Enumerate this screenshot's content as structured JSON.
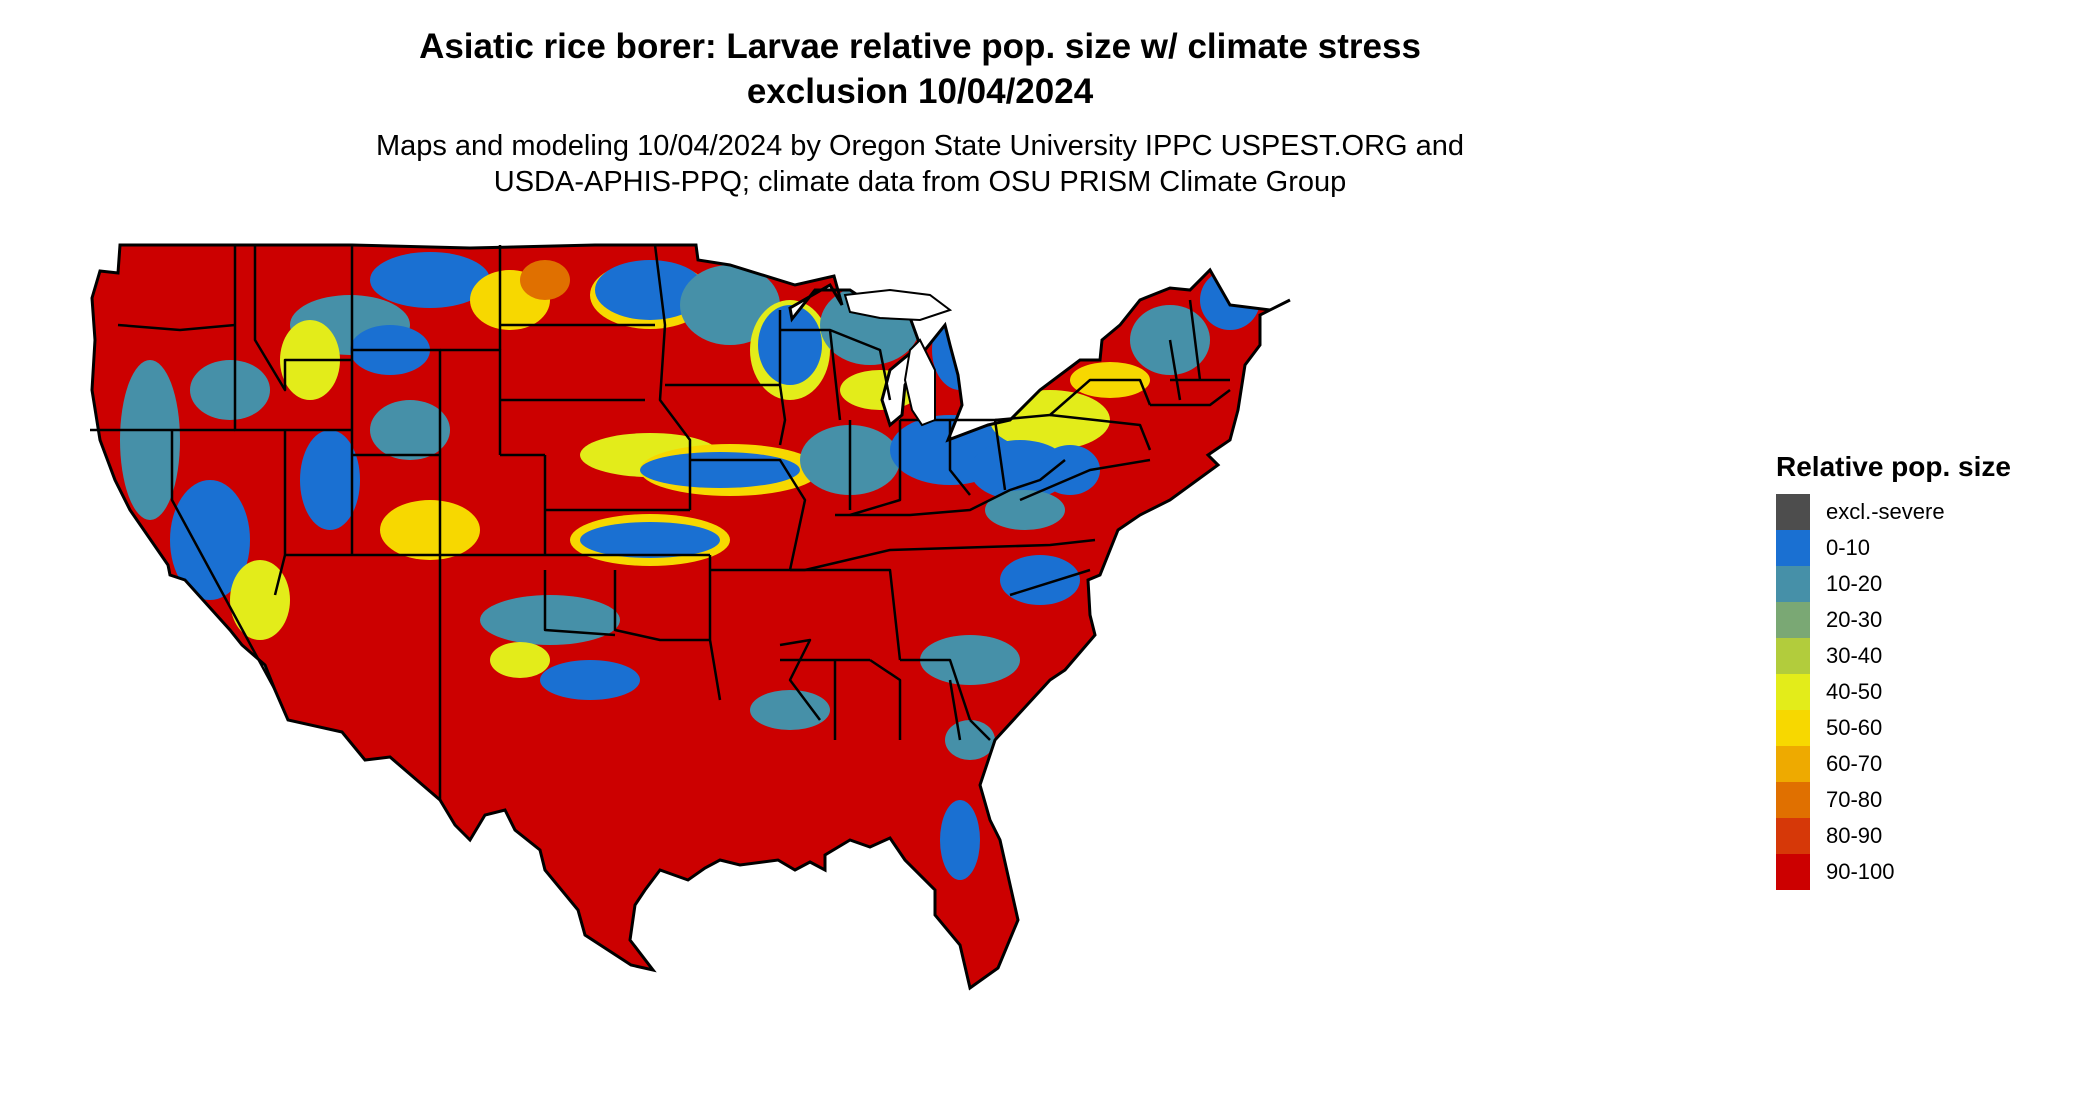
{
  "title": {
    "line1": "Asiatic rice borer: Larvae relative pop. size w/ climate stress",
    "line2": "exclusion 10/04/2024"
  },
  "subtitle": {
    "line1": "Maps and modeling 10/04/2024 by Oregon State University IPPC USPEST.ORG and",
    "line2": "USDA-APHIS-PPQ; climate data from OSU PRISM Climate Group"
  },
  "legend": {
    "title": "Relative pop. size",
    "items": [
      {
        "label": "excl.-severe",
        "color": "#4d4d4d"
      },
      {
        "label": "0-10",
        "color": "#1a70d2"
      },
      {
        "label": "10-20",
        "color": "#4690a8"
      },
      {
        "label": "20-30",
        "color": "#7aa874"
      },
      {
        "label": "30-40",
        "color": "#b2cc3c"
      },
      {
        "label": "40-50",
        "color": "#e3ec1a"
      },
      {
        "label": "50-60",
        "color": "#f7d800"
      },
      {
        "label": "60-70",
        "color": "#eeaa00"
      },
      {
        "label": "70-80",
        "color": "#e07000"
      },
      {
        "label": "80-90",
        "color": "#d63808"
      },
      {
        "label": "90-100",
        "color": "#cc0000"
      }
    ]
  },
  "map": {
    "region": "contiguous United States",
    "dominant_class": "90-100",
    "base_color": "#cc0000",
    "border_color": "#000000"
  }
}
